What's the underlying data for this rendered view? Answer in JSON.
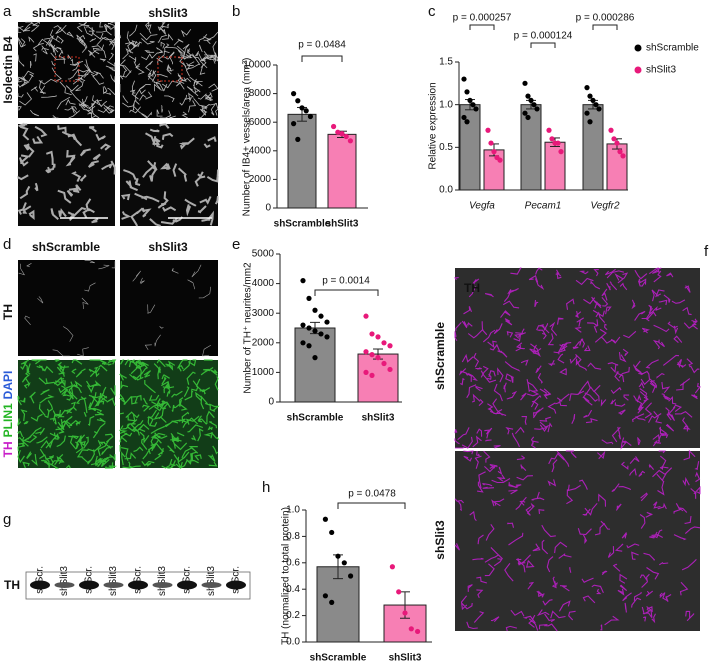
{
  "panel_letters": [
    "a",
    "b",
    "c",
    "d",
    "e",
    "f",
    "g",
    "h"
  ],
  "panel_a": {
    "columns": [
      "shScramble",
      "shSlit3"
    ],
    "row_label": "Isolectin B4"
  },
  "panel_d": {
    "columns": [
      "shScramble",
      "shSlit3"
    ],
    "row_label_top": "TH",
    "row_label_bottom": [
      "TH",
      "PLIN1",
      "DAPI"
    ]
  },
  "panel_f": {
    "rows": [
      "shScramble",
      "shSlit3"
    ],
    "stain": "TH"
  },
  "panel_g": {
    "lanes": [
      "shScr.",
      "shSlit3",
      "shScr.",
      "shSlit3",
      "shScr.",
      "shSlit3",
      "shScr.",
      "shSlit3",
      "shScr."
    ],
    "band": "TH"
  },
  "chart_data": [
    {
      "type": "bar",
      "ylabel": "Number of IB4+ vessels/area (mm²)",
      "categories": [
        "shScramble",
        "shSlit3"
      ],
      "values": [
        6550,
        5150
      ],
      "errors": [
        480,
        220
      ],
      "points": [
        [
          8000,
          7500,
          7000,
          6800,
          6400,
          5900,
          4800
        ],
        [
          5700,
          5300,
          5200,
          5000,
          4700
        ]
      ],
      "colors": [
        "#8a8a8a",
        "#f77fb4"
      ],
      "dot_colors": [
        "#000000",
        "#e8197a"
      ],
      "ylim": [
        0,
        10000
      ],
      "yticks": [
        0,
        2000,
        4000,
        6000,
        8000,
        10000
      ],
      "annotations": [
        "p = 0.0484"
      ]
    },
    {
      "type": "grouped-bar",
      "ylabel": "Relative expression",
      "categories": [
        "Vegfa",
        "Pecam1",
        "Vegfr2"
      ],
      "series": [
        {
          "name": "shScramble",
          "color": "#8a8a8a",
          "dot_color": "#000000",
          "values": [
            1.0,
            1.0,
            1.0
          ],
          "errors": [
            0.06,
            0.05,
            0.05
          ],
          "points": [
            [
              1.3,
              1.15,
              1.05,
              1.0,
              0.95,
              0.85,
              0.8
            ],
            [
              1.25,
              1.1,
              1.05,
              1.0,
              0.95,
              0.9,
              0.85
            ],
            [
              1.2,
              1.1,
              1.05,
              1.0,
              0.95,
              0.9,
              0.8
            ]
          ]
        },
        {
          "name": "shSlit3",
          "color": "#f77fb4",
          "dot_color": "#e8197a",
          "values": [
            0.47,
            0.56,
            0.54
          ],
          "errors": [
            0.07,
            0.05,
            0.06
          ],
          "points": [
            [
              0.7,
              0.55,
              0.45,
              0.38,
              0.35
            ],
            [
              0.7,
              0.6,
              0.55,
              0.55,
              0.45
            ],
            [
              0.7,
              0.6,
              0.55,
              0.45,
              0.4
            ]
          ]
        }
      ],
      "ylim": [
        0,
        1.5
      ],
      "yticks": [
        {
          "value": 0,
          "label": "0.0"
        },
        0.5,
        {
          "value": 1,
          "label": "1.0"
        },
        1.5
      ],
      "annotations": [
        "p = 0.000257",
        "p = 0.000124",
        "p = 0.000286"
      ],
      "legend": "right"
    },
    {
      "type": "bar",
      "ylabel": "Number of TH⁺ neurites/mm2",
      "categories": [
        "shScramble",
        "shSlit3"
      ],
      "values": [
        2500,
        1620
      ],
      "errors": [
        190,
        170
      ],
      "points": [
        [
          4100,
          3500,
          3100,
          2900,
          2700,
          2600,
          2500,
          2400,
          2300,
          2200,
          2000,
          1900,
          1500
        ],
        [
          2900,
          2300,
          2200,
          2000,
          1900,
          1700,
          1600,
          1500,
          1300,
          1100,
          1000,
          900
        ]
      ],
      "colors": [
        "#8a8a8a",
        "#f77fb4"
      ],
      "dot_colors": [
        "#000000",
        "#e8197a"
      ],
      "ylim": [
        0,
        5000
      ],
      "yticks": [
        0,
        1000,
        2000,
        3000,
        4000,
        5000
      ],
      "annotations": [
        "p = 0.0014"
      ]
    },
    {
      "type": "bar",
      "ylabel": "TH (normalized to total protein)",
      "categories": [
        "shScramble",
        "shSlit3"
      ],
      "values": [
        0.57,
        0.28
      ],
      "errors": [
        0.09,
        0.1
      ],
      "points": [
        [
          0.93,
          0.83,
          0.65,
          0.6,
          0.5,
          0.35,
          0.3
        ],
        [
          0.57,
          0.38,
          0.22,
          0.1,
          0.08
        ]
      ],
      "colors": [
        "#8a8a8a",
        "#f77fb4"
      ],
      "dot_colors": [
        "#000000",
        "#e8197a"
      ],
      "ylim": [
        0,
        1.0
      ],
      "yticks": [
        {
          "value": 0,
          "label": "0.0"
        },
        0.2,
        0.4,
        0.6,
        0.8,
        {
          "value": 1,
          "label": "1.0"
        }
      ],
      "annotations": [
        "p = 0.0478"
      ]
    }
  ]
}
